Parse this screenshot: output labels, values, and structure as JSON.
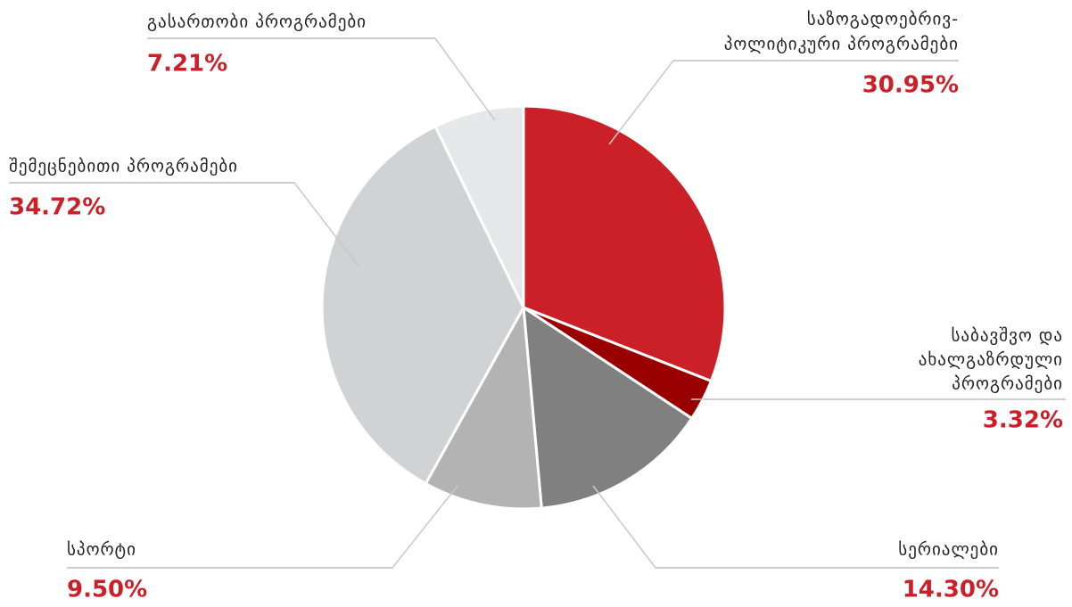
{
  "chart_data": {
    "type": "pie",
    "categories": [
      [
        "საზოგადოებრივ-",
        "პოლიტიკური პროგრამები"
      ],
      [
        "საბავშვო და",
        "ახალგაზრდული",
        "პროგრამები"
      ],
      [
        "სერიალები"
      ],
      [
        "სპორტი"
      ],
      [
        "შემეცნებითი პროგრამები"
      ],
      [
        "გასართობი პროგრამები"
      ]
    ],
    "values": [
      30.95,
      3.32,
      14.3,
      9.5,
      34.72,
      7.21
    ],
    "value_labels": [
      "30.95%",
      "3.32%",
      "14.30%",
      "9.50%",
      "34.72%",
      "7.21%"
    ],
    "colors": [
      "#cc2029",
      "#990000",
      "#808080",
      "#b3b3b3",
      "#d1d2d4",
      "#e6e7e9"
    ]
  }
}
